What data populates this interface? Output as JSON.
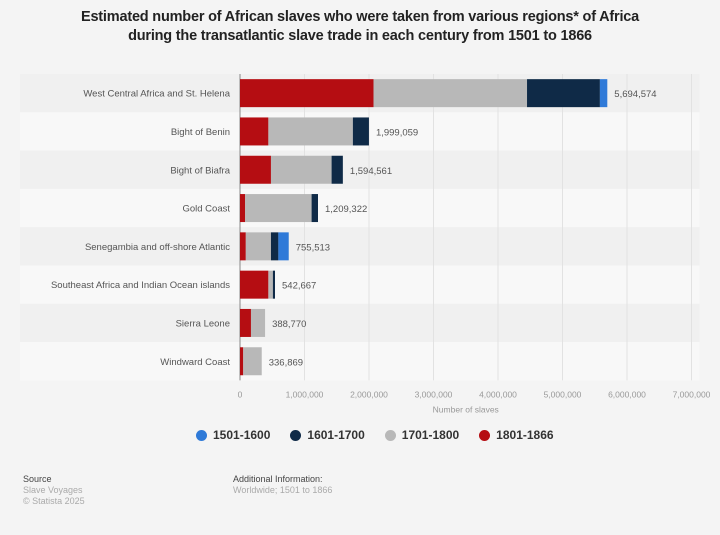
{
  "chart_data": {
    "type": "bar",
    "orientation": "horizontal",
    "stacked": true,
    "title": "Estimated number of African slaves who were taken from various regions* of Africa during the transatlantic slave trade in each century from 1501 to 1866",
    "title_lines": [
      "Estimated number of African slaves who were taken from various regions* of Africa",
      "during the transatlantic slave trade in each century from 1501 to 1866"
    ],
    "xlabel": "Number of slaves",
    "ylabel": "",
    "xlim": [
      0,
      7000000
    ],
    "x_ticks": [
      "0",
      "1,000,000",
      "2,000,000",
      "3,000,000",
      "4,000,000",
      "5,000,000",
      "6,000,000",
      "7,000,000"
    ],
    "grid": true,
    "legend_placement": "bottom",
    "categories": [
      "West Central Africa and St. Helena",
      "Bight of Benin",
      "Bight of Biafra",
      "Gold Coast",
      "Senegambia and off-shore Atlantic",
      "Southeast Africa and Indian Ocean islands",
      "Sierra Leone",
      "Windward Coast"
    ],
    "totals": [
      "5,694,574",
      "1,999,059",
      "1,594,561",
      "1,209,322",
      "755,513",
      "542,667",
      "388,770",
      "336,869"
    ],
    "series": [
      {
        "name": "1801-1866",
        "color": "#b50d12",
        "values": [
          2070000,
          440000,
          480000,
          80000,
          90000,
          440000,
          170000,
          50000
        ]
      },
      {
        "name": "1701-1800",
        "color": "#b8b8b8",
        "values": [
          2380000,
          1310000,
          940000,
          1030000,
          390000,
          70000,
          218770,
          286869
        ]
      },
      {
        "name": "1601-1700",
        "color": "#0f2a47",
        "values": [
          1130000,
          249059,
          174561,
          99322,
          115000,
          32667,
          0,
          0
        ]
      },
      {
        "name": "1501-1600",
        "color": "#2f7ad8",
        "values": [
          114574,
          0,
          0,
          0,
          160513,
          0,
          0,
          0
        ]
      }
    ],
    "legend_order": [
      "1501-1600",
      "1601-1700",
      "1701-1800",
      "1801-1866"
    ]
  },
  "legend": [
    {
      "label": "1501-1600",
      "color": "#2f7ad8"
    },
    {
      "label": "1601-1700",
      "color": "#0f2a47"
    },
    {
      "label": "1701-1800",
      "color": "#b8b8b8"
    },
    {
      "label": "1801-1866",
      "color": "#b50d12"
    }
  ],
  "footer": {
    "source_heading": "Source",
    "source_lines": [
      "Slave Voyages",
      "© Statista 2025"
    ],
    "info_heading": "Additional Information:",
    "info_text": "Worldwide; 1501 to 1866"
  }
}
